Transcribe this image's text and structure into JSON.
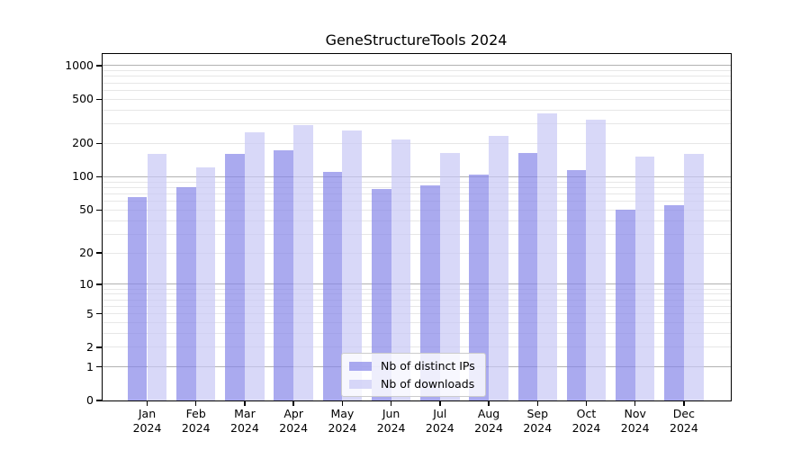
{
  "title": "GeneStructureTools 2024",
  "chart_data": {
    "type": "bar",
    "title": "GeneStructureTools 2024",
    "scale": "log10(x+1)",
    "grid": true,
    "legend_position": "lower center",
    "categories": [
      "Jan",
      "Feb",
      "Mar",
      "Apr",
      "May",
      "Jun",
      "Jul",
      "Aug",
      "Sep",
      "Oct",
      "Nov",
      "Dec"
    ],
    "year_label": "2024",
    "yticks": [
      0,
      1,
      2,
      5,
      10,
      20,
      50,
      100,
      200,
      500,
      1000
    ],
    "ylim": [
      0,
      1285
    ],
    "series": [
      {
        "name": "Nb of distinct IPs",
        "color": "rgba(134,134,232,0.7)",
        "values": [
          66,
          81,
          162,
          175,
          110,
          78,
          84,
          105,
          165,
          115,
          50,
          55
        ]
      },
      {
        "name": "Nb of downloads",
        "color": "rgba(199,199,245,0.7)",
        "values": [
          160,
          122,
          250,
          290,
          262,
          217,
          164,
          233,
          375,
          330,
          152,
          161
        ]
      }
    ],
    "colors": {
      "major_grid": "#b2b2b2",
      "minor_grid": "#e7e7e7",
      "axis": "#000000"
    }
  },
  "legend": {
    "items": [
      "Nb of distinct IPs",
      "Nb of downloads"
    ]
  }
}
